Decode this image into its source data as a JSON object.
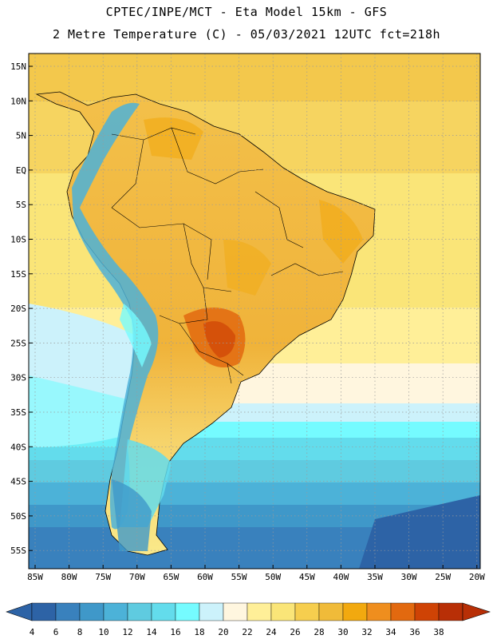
{
  "header": {
    "line1": "CPTEC/INPE/MCT -  Eta Model 15km - GFS",
    "line2": "2 Metre Temperature (C) - 05/03/2021 12UTC fct=218h"
  },
  "map": {
    "lat_labels": [
      "15N",
      "10N",
      "5N",
      "EQ",
      "5S",
      "10S",
      "15S",
      "20S",
      "25S",
      "30S",
      "35S",
      "40S",
      "45S",
      "50S",
      "55S"
    ],
    "lon_labels": [
      "85W",
      "80W",
      "75W",
      "70W",
      "65W",
      "60W",
      "55W",
      "50W",
      "45W",
      "40W",
      "35W",
      "30W",
      "25W",
      "20W"
    ]
  },
  "colorbar": {
    "labels": [
      "4",
      "6",
      "8",
      "10",
      "12",
      "14",
      "16",
      "18",
      "20",
      "22",
      "24",
      "26",
      "28",
      "30",
      "32",
      "34",
      "36",
      "38"
    ],
    "colors": [
      "#2d63a6",
      "#3981bd",
      "#3f98c9",
      "#4cb2d8",
      "#5fcbe0",
      "#63dcec",
      "#75fbff",
      "#ccf2fb",
      "#fff6df",
      "#ffef98",
      "#fae578",
      "#f6ce4e",
      "#f0bb39",
      "#f2a90f",
      "#ef8e1e",
      "#e2690f",
      "#cf4305",
      "#b82f06"
    ]
  }
}
